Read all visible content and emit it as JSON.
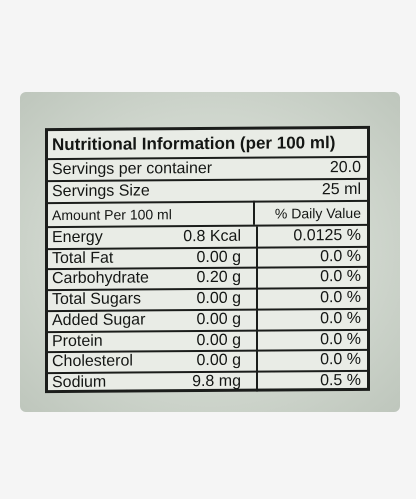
{
  "panel": {
    "title": "Nutritional Information (per 100 ml)",
    "servings_per_container_label": "Servings per container",
    "servings_per_container_value": "20.0",
    "serving_size_label": "Servings Size",
    "serving_size_value": "25 ml",
    "amount_header": "Amount Per 100 ml",
    "daily_value_header": "% Daily Value"
  },
  "nutrients": [
    {
      "name": "Energy",
      "amount": "0.8 Kcal",
      "dv": "0.0125 %"
    },
    {
      "name": "Total Fat",
      "amount": "0.00 g",
      "dv": "0.0 %"
    },
    {
      "name": "Carbohydrate",
      "amount": "0.20 g",
      "dv": "0.0 %"
    },
    {
      "name": "Total Sugars",
      "amount": "0.00 g",
      "dv": "0.0 %"
    },
    {
      "name": "Added Sugar",
      "amount": "0.00 g",
      "dv": "0.0 %"
    },
    {
      "name": "Protein",
      "amount": "0.00 g",
      "dv": "0.0 %"
    },
    {
      "name": "Cholesterol",
      "amount": "0.00 g",
      "dv": "0.0 %"
    },
    {
      "name": "Sodium",
      "amount": "9.8 mg",
      "dv": "0.5 %"
    }
  ]
}
